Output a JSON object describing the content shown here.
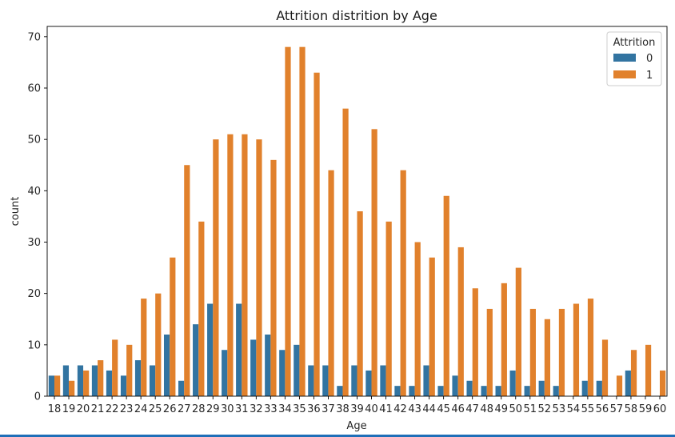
{
  "chart_data": {
    "type": "bar",
    "title": "Attrition distrition by Age",
    "xlabel": "Age",
    "ylabel": "count",
    "ylim": [
      0,
      72
    ],
    "yticks": [
      0,
      10,
      20,
      30,
      40,
      50,
      60,
      70
    ],
    "grid": false,
    "legend": {
      "title": "Attrition",
      "placement": "top-right"
    },
    "categories": [
      "18",
      "19",
      "20",
      "21",
      "22",
      "23",
      "24",
      "25",
      "26",
      "27",
      "28",
      "29",
      "30",
      "31",
      "32",
      "33",
      "34",
      "35",
      "36",
      "37",
      "38",
      "39",
      "40",
      "41",
      "42",
      "43",
      "44",
      "45",
      "46",
      "47",
      "48",
      "49",
      "50",
      "51",
      "52",
      "53",
      "54",
      "55",
      "56",
      "57",
      "58",
      "59",
      "60"
    ],
    "series": [
      {
        "name": "0",
        "color": "#3274a1",
        "values": [
          4,
          6,
          6,
          6,
          5,
          4,
          7,
          6,
          12,
          3,
          14,
          18,
          9,
          18,
          11,
          12,
          9,
          10,
          6,
          6,
          2,
          6,
          5,
          6,
          2,
          2,
          6,
          2,
          4,
          3,
          2,
          2,
          5,
          2,
          3,
          2,
          0,
          3,
          3,
          0,
          5,
          0,
          0
        ]
      },
      {
        "name": "1",
        "color": "#e1812c",
        "values": [
          4,
          3,
          5,
          7,
          11,
          10,
          19,
          20,
          27,
          45,
          34,
          50,
          51,
          51,
          50,
          46,
          68,
          68,
          63,
          44,
          56,
          36,
          52,
          34,
          44,
          30,
          27,
          39,
          29,
          21,
          17,
          22,
          25,
          17,
          15,
          17,
          18,
          19,
          11,
          4,
          9,
          10,
          5
        ]
      }
    ]
  }
}
